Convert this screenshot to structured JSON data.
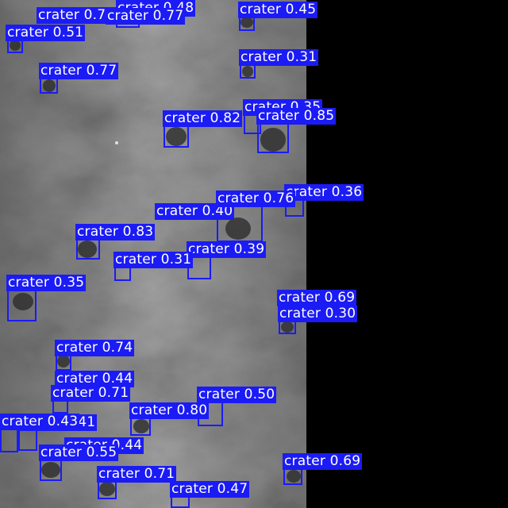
{
  "image": {
    "description_colors": {
      "box": "#1b1bf5",
      "label_text": "#ffffff",
      "background": "#000000"
    }
  },
  "detections": [
    {
      "label": "crater 0.48",
      "class": "crater",
      "score": "0.48"
    },
    {
      "label": "crater 0.77",
      "class": "crater",
      "score": "0.77"
    },
    {
      "label": "crater 0.45",
      "class": "crater",
      "score": "0.45"
    },
    {
      "label": "crater 0.77",
      "class": "crater",
      "score": "0.77"
    },
    {
      "label": "crater 0.51",
      "class": "crater",
      "score": "0.51"
    },
    {
      "label": "crater 0.77",
      "class": "crater",
      "score": "0.77"
    },
    {
      "label": "crater 0.31",
      "class": "crater",
      "score": "0.31"
    },
    {
      "label": "crater 0.35",
      "class": "crater",
      "score": "0.35"
    },
    {
      "label": "crater 0.82",
      "class": "crater",
      "score": "0.82"
    },
    {
      "label": "crater 0.85",
      "class": "crater",
      "score": "0.85"
    },
    {
      "label": "crater 0.36",
      "class": "crater",
      "score": "0.36"
    },
    {
      "label": "crater 0.76",
      "class": "crater",
      "score": "0.76"
    },
    {
      "label": "crater 0.40",
      "class": "crater",
      "score": "0.40"
    },
    {
      "label": "crater 0.83",
      "class": "crater",
      "score": "0.83"
    },
    {
      "label": "crater 0.39",
      "class": "crater",
      "score": "0.39"
    },
    {
      "label": "crater 0.31",
      "class": "crater",
      "score": "0.31"
    },
    {
      "label": "crater 0.35",
      "class": "crater",
      "score": "0.35"
    },
    {
      "label": "crater 0.69",
      "class": "crater",
      "score": "0.69"
    },
    {
      "label": "crater 0.30",
      "class": "crater",
      "score": "0.30"
    },
    {
      "label": "crater 0.74",
      "class": "crater",
      "score": "0.74"
    },
    {
      "label": "crater 0.44",
      "class": "crater",
      "score": "0.44"
    },
    {
      "label": "crater 0.71",
      "class": "crater",
      "score": "0.71"
    },
    {
      "label": "crater 0.50",
      "class": "crater",
      "score": "0.50"
    },
    {
      "label": "crater 0.80",
      "class": "crater",
      "score": "0.80"
    },
    {
      "label": "crater 0.43",
      "class": "crater",
      "score": "0.43"
    },
    {
      "label": "crater 0.41",
      "class": "crater",
      "score": "0.41"
    },
    {
      "label": "crater 0.44",
      "class": "crater",
      "score": "0.44"
    },
    {
      "label": "crater 0.55",
      "class": "crater",
      "score": "0.55"
    },
    {
      "label": "crater 0.69",
      "class": "crater",
      "score": "0.69"
    },
    {
      "label": "crater 0.71",
      "class": "crater",
      "score": "0.71"
    },
    {
      "label": "crater 0.47",
      "class": "crater",
      "score": "0.47"
    }
  ]
}
